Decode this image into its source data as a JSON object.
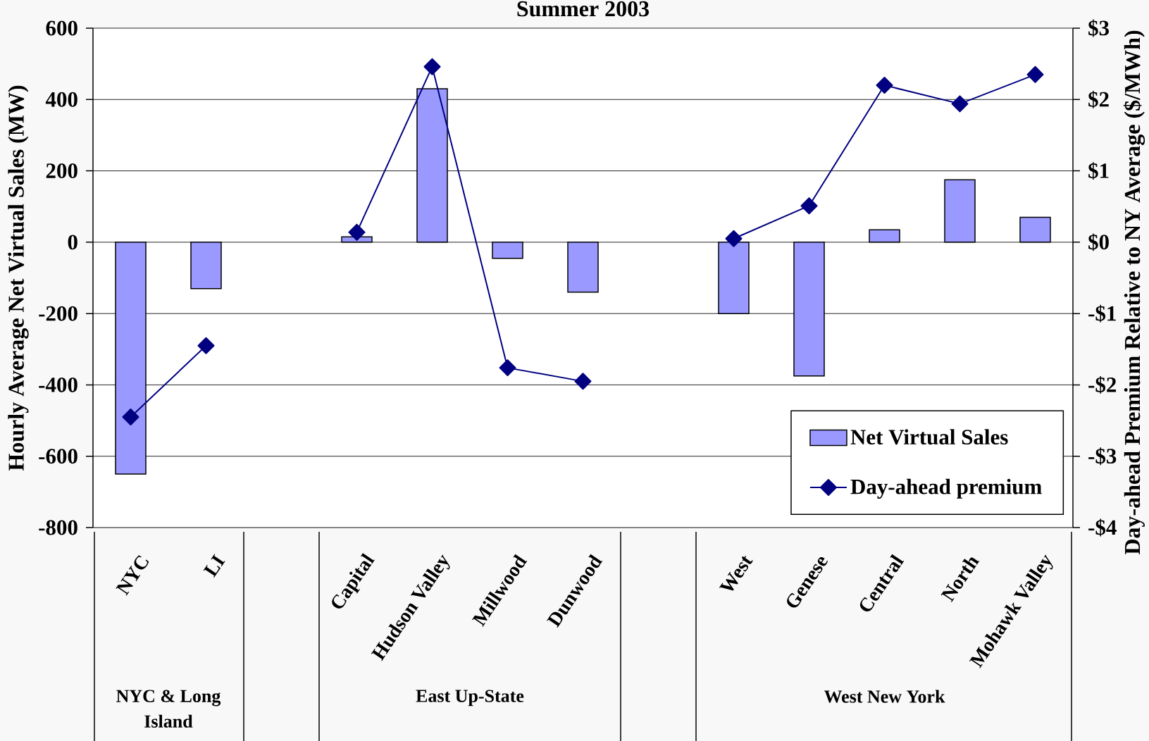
{
  "chart_data": {
    "type": "bar",
    "title": "Summer 2003",
    "ylabel": "Hourly Average Net Virtual Sales (MW)",
    "y2label": "Day-ahead Premium Relative to NY Average ($/MWh)",
    "categories": [
      "NYC",
      "LI",
      null,
      "Capital",
      "Hudson Valley",
      "Millwood",
      "Dunwood",
      null,
      "West",
      "Genese",
      "Central",
      "North",
      "Mohawk Valley"
    ],
    "series": [
      {
        "name": "Net Virtual Sales",
        "color": "#9999ff",
        "values": [
          -650,
          -130,
          null,
          15,
          430,
          -45,
          -140,
          null,
          -200,
          -375,
          35,
          175,
          70
        ]
      },
      {
        "name": "Day-ahead premium",
        "type": "line",
        "axis": "y2",
        "color": "#000080",
        "marker": "diamond",
        "values": [
          -2.45,
          -1.45,
          null,
          0.14,
          2.46,
          -1.76,
          -1.95,
          null,
          0.05,
          0.51,
          2.2,
          1.94,
          2.35
        ]
      }
    ],
    "ylim": [
      -800,
      600
    ],
    "yticks": [
      600,
      400,
      200,
      0,
      -200,
      -400,
      -600,
      -800
    ],
    "y2lim": [
      -4,
      3
    ],
    "y2ticks": [
      {
        "value": 3,
        "label": "$3"
      },
      {
        "value": 2,
        "label": "$2"
      },
      {
        "value": 1,
        "label": "$1"
      },
      {
        "value": 0,
        "label": "$0"
      },
      {
        "value": -1,
        "label": "-$1"
      },
      {
        "value": -2,
        "label": "-$2"
      },
      {
        "value": -3,
        "label": "-$3"
      },
      {
        "value": -4,
        "label": "-$4"
      }
    ],
    "grid": "y",
    "legend": "bottom right",
    "annotations": [
      "NYC & Long Island",
      "East Up-State",
      "West New York"
    ]
  }
}
